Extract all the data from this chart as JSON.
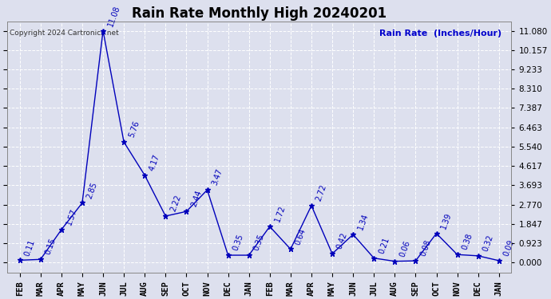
{
  "title": "Rain Rate Monthly High 20240201",
  "ylabel_text": "Rain Rate  (Inches/Hour)",
  "copyright": "Copyright 2024 Cartronics.net",
  "categories": [
    "FEB",
    "MAR",
    "APR",
    "MAY",
    "JUN",
    "JUL",
    "AUG",
    "SEP",
    "OCT",
    "NOV",
    "DEC",
    "JAN",
    "FEB",
    "MAR",
    "APR",
    "MAY",
    "JUN",
    "JUL",
    "AUG",
    "SEP",
    "OCT",
    "NOV",
    "DEC",
    "JAN"
  ],
  "values": [
    0.11,
    0.15,
    1.57,
    2.85,
    11.08,
    5.76,
    4.17,
    2.22,
    2.44,
    3.47,
    0.35,
    0.35,
    1.72,
    0.64,
    2.72,
    0.42,
    1.34,
    0.21,
    0.06,
    0.08,
    1.39,
    0.38,
    0.32,
    0.09
  ],
  "value_labels": [
    "0.11",
    "0.15",
    "1.57",
    "2.85",
    "11.08",
    "5.76",
    "4.17",
    "2.22",
    "2.44",
    "3.47",
    "0.35",
    "0.35",
    "1.72",
    "0.64",
    "2.72",
    "0.42",
    "1.34",
    "0.21",
    "0.06",
    "0.08",
    "1.39",
    "0.38",
    "0.32",
    "0.09"
  ],
  "yticks": [
    0.0,
    0.923,
    1.847,
    2.77,
    3.693,
    4.617,
    5.54,
    6.463,
    7.387,
    8.31,
    9.233,
    10.157,
    11.08
  ],
  "yticklabels": [
    "0.000",
    "0.923",
    "1.847",
    "2.770",
    "3.693",
    "4.617",
    "5.540",
    "6.463",
    "7.387",
    "8.310",
    "9.233",
    "10.157",
    "11.080"
  ],
  "line_color": "#0000bb",
  "marker": "*",
  "marker_size": 5,
  "title_fontsize": 12,
  "tick_fontsize": 7.5,
  "annotation_fontsize": 7,
  "background_color": "#dde0ee",
  "plot_bg_color": "#dde0ee",
  "grid_color": "#ffffff",
  "ylabel_color": "#0000cc",
  "copyright_color": "#333333",
  "copyright_fontsize": 6.5,
  "ylabel_fontsize": 8
}
